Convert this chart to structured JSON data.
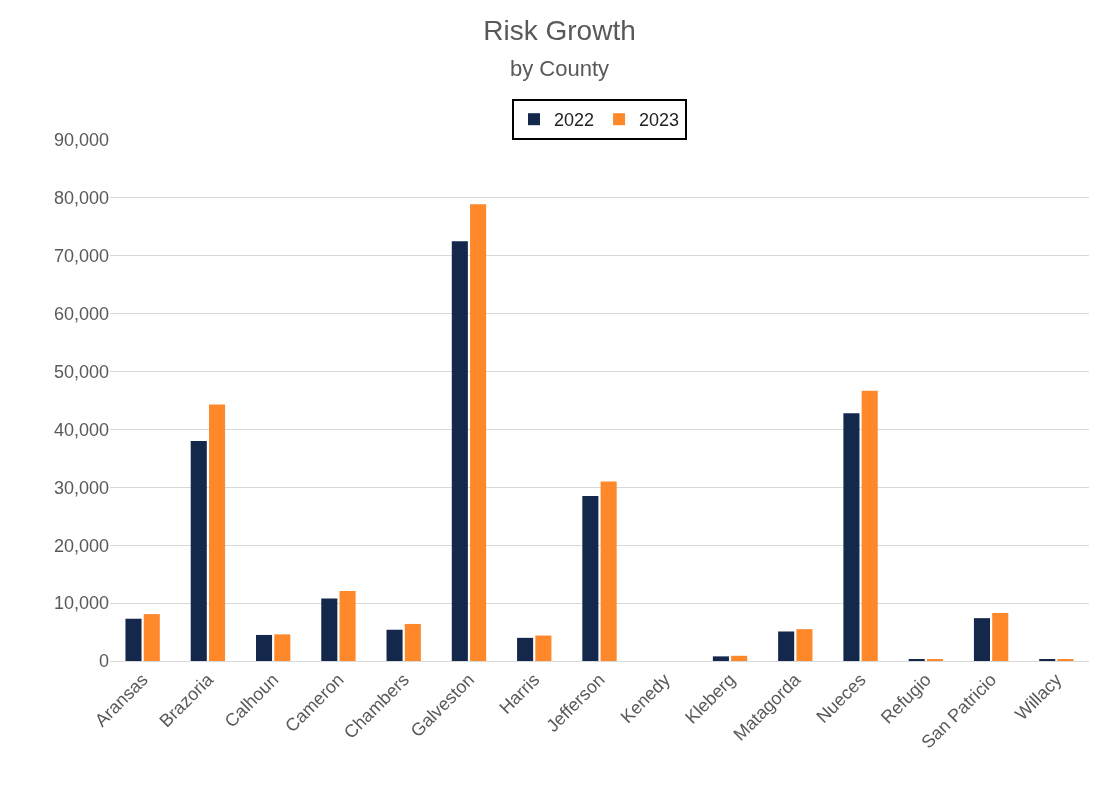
{
  "chart_data": {
    "type": "bar",
    "title": "Risk Growth",
    "subtitle": "by County",
    "categories": [
      "Aransas",
      "Brazoria",
      "Calhoun",
      "Cameron",
      "Chambers",
      "Galveston",
      "Harris",
      "Jefferson",
      "Kenedy",
      "Kleberg",
      "Matagorda",
      "Nueces",
      "Refugio",
      "San Patricio",
      "Willacy"
    ],
    "series": [
      {
        "name": "2022",
        "color": "#14284b",
        "values": [
          7300,
          38000,
          4500,
          10800,
          5400,
          72500,
          4000,
          28500,
          0,
          800,
          5100,
          42800,
          300,
          7400,
          300
        ]
      },
      {
        "name": "2023",
        "color": "#fe882a",
        "values": [
          8100,
          44300,
          4600,
          12100,
          6400,
          78900,
          4400,
          31000,
          0,
          900,
          5500,
          46700,
          300,
          8300,
          300
        ]
      }
    ],
    "ylim": [
      0,
      90000
    ],
    "yticks": [
      {
        "value": 0,
        "label": "0"
      },
      {
        "value": 10000,
        "label": "10,000"
      },
      {
        "value": 20000,
        "label": "20,000"
      },
      {
        "value": 30000,
        "label": "30,000"
      },
      {
        "value": 40000,
        "label": "40,000"
      },
      {
        "value": 50000,
        "label": "50,000"
      },
      {
        "value": 60000,
        "label": "60,000"
      },
      {
        "value": 70000,
        "label": "70,000"
      },
      {
        "value": 80000,
        "label": "80,000"
      },
      {
        "value": 90000,
        "label": "90,000"
      }
    ],
    "grid": "y",
    "legend": "top"
  }
}
